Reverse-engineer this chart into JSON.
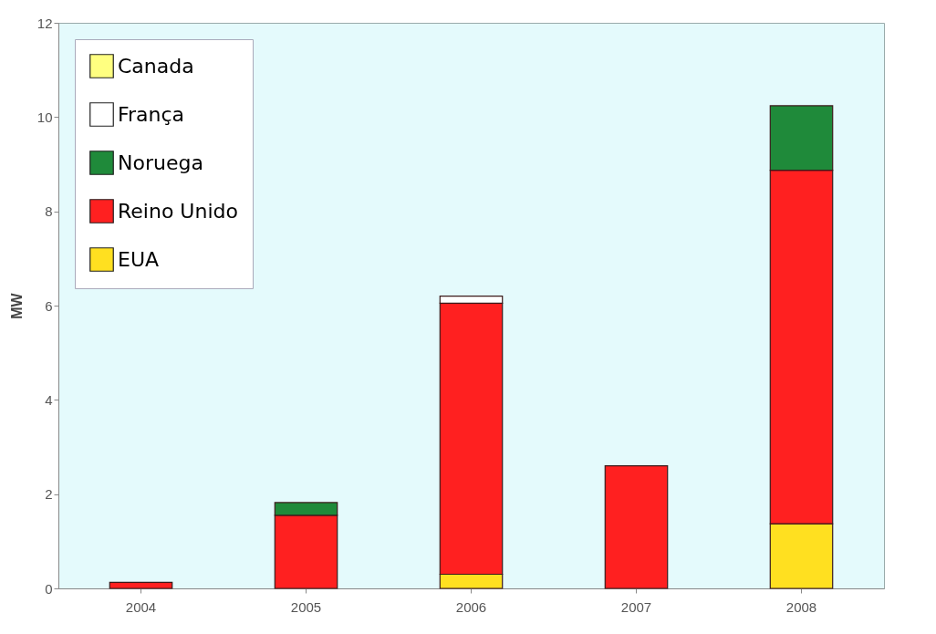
{
  "chart_data": {
    "type": "bar",
    "stacked": true,
    "ylabel": "MW",
    "categories": [
      "2004",
      "2005",
      "2006",
      "2007",
      "2008"
    ],
    "series": [
      {
        "name": "EUA",
        "color": "#ffe020",
        "values": [
          null,
          null,
          0.3,
          null,
          1.37
        ]
      },
      {
        "name": "Reino Unido",
        "color": "#ff2020",
        "values": [
          0.13,
          1.55,
          5.75,
          2.6,
          7.5
        ]
      },
      {
        "name": "Noruega",
        "color": "#1f8a3a",
        "values": [
          null,
          0.27,
          null,
          null,
          1.37
        ]
      },
      {
        "name": "França",
        "color": "#ffffff",
        "values": [
          null,
          null,
          0.15,
          null,
          null
        ]
      },
      {
        "name": "Canada",
        "color": "#ffff80",
        "values": [
          null,
          null,
          null,
          null,
          null
        ]
      }
    ],
    "ylim": [
      0,
      12
    ],
    "yticks": [
      0,
      2,
      4,
      6,
      8,
      10,
      12
    ],
    "grid": false,
    "legend": "top left"
  }
}
